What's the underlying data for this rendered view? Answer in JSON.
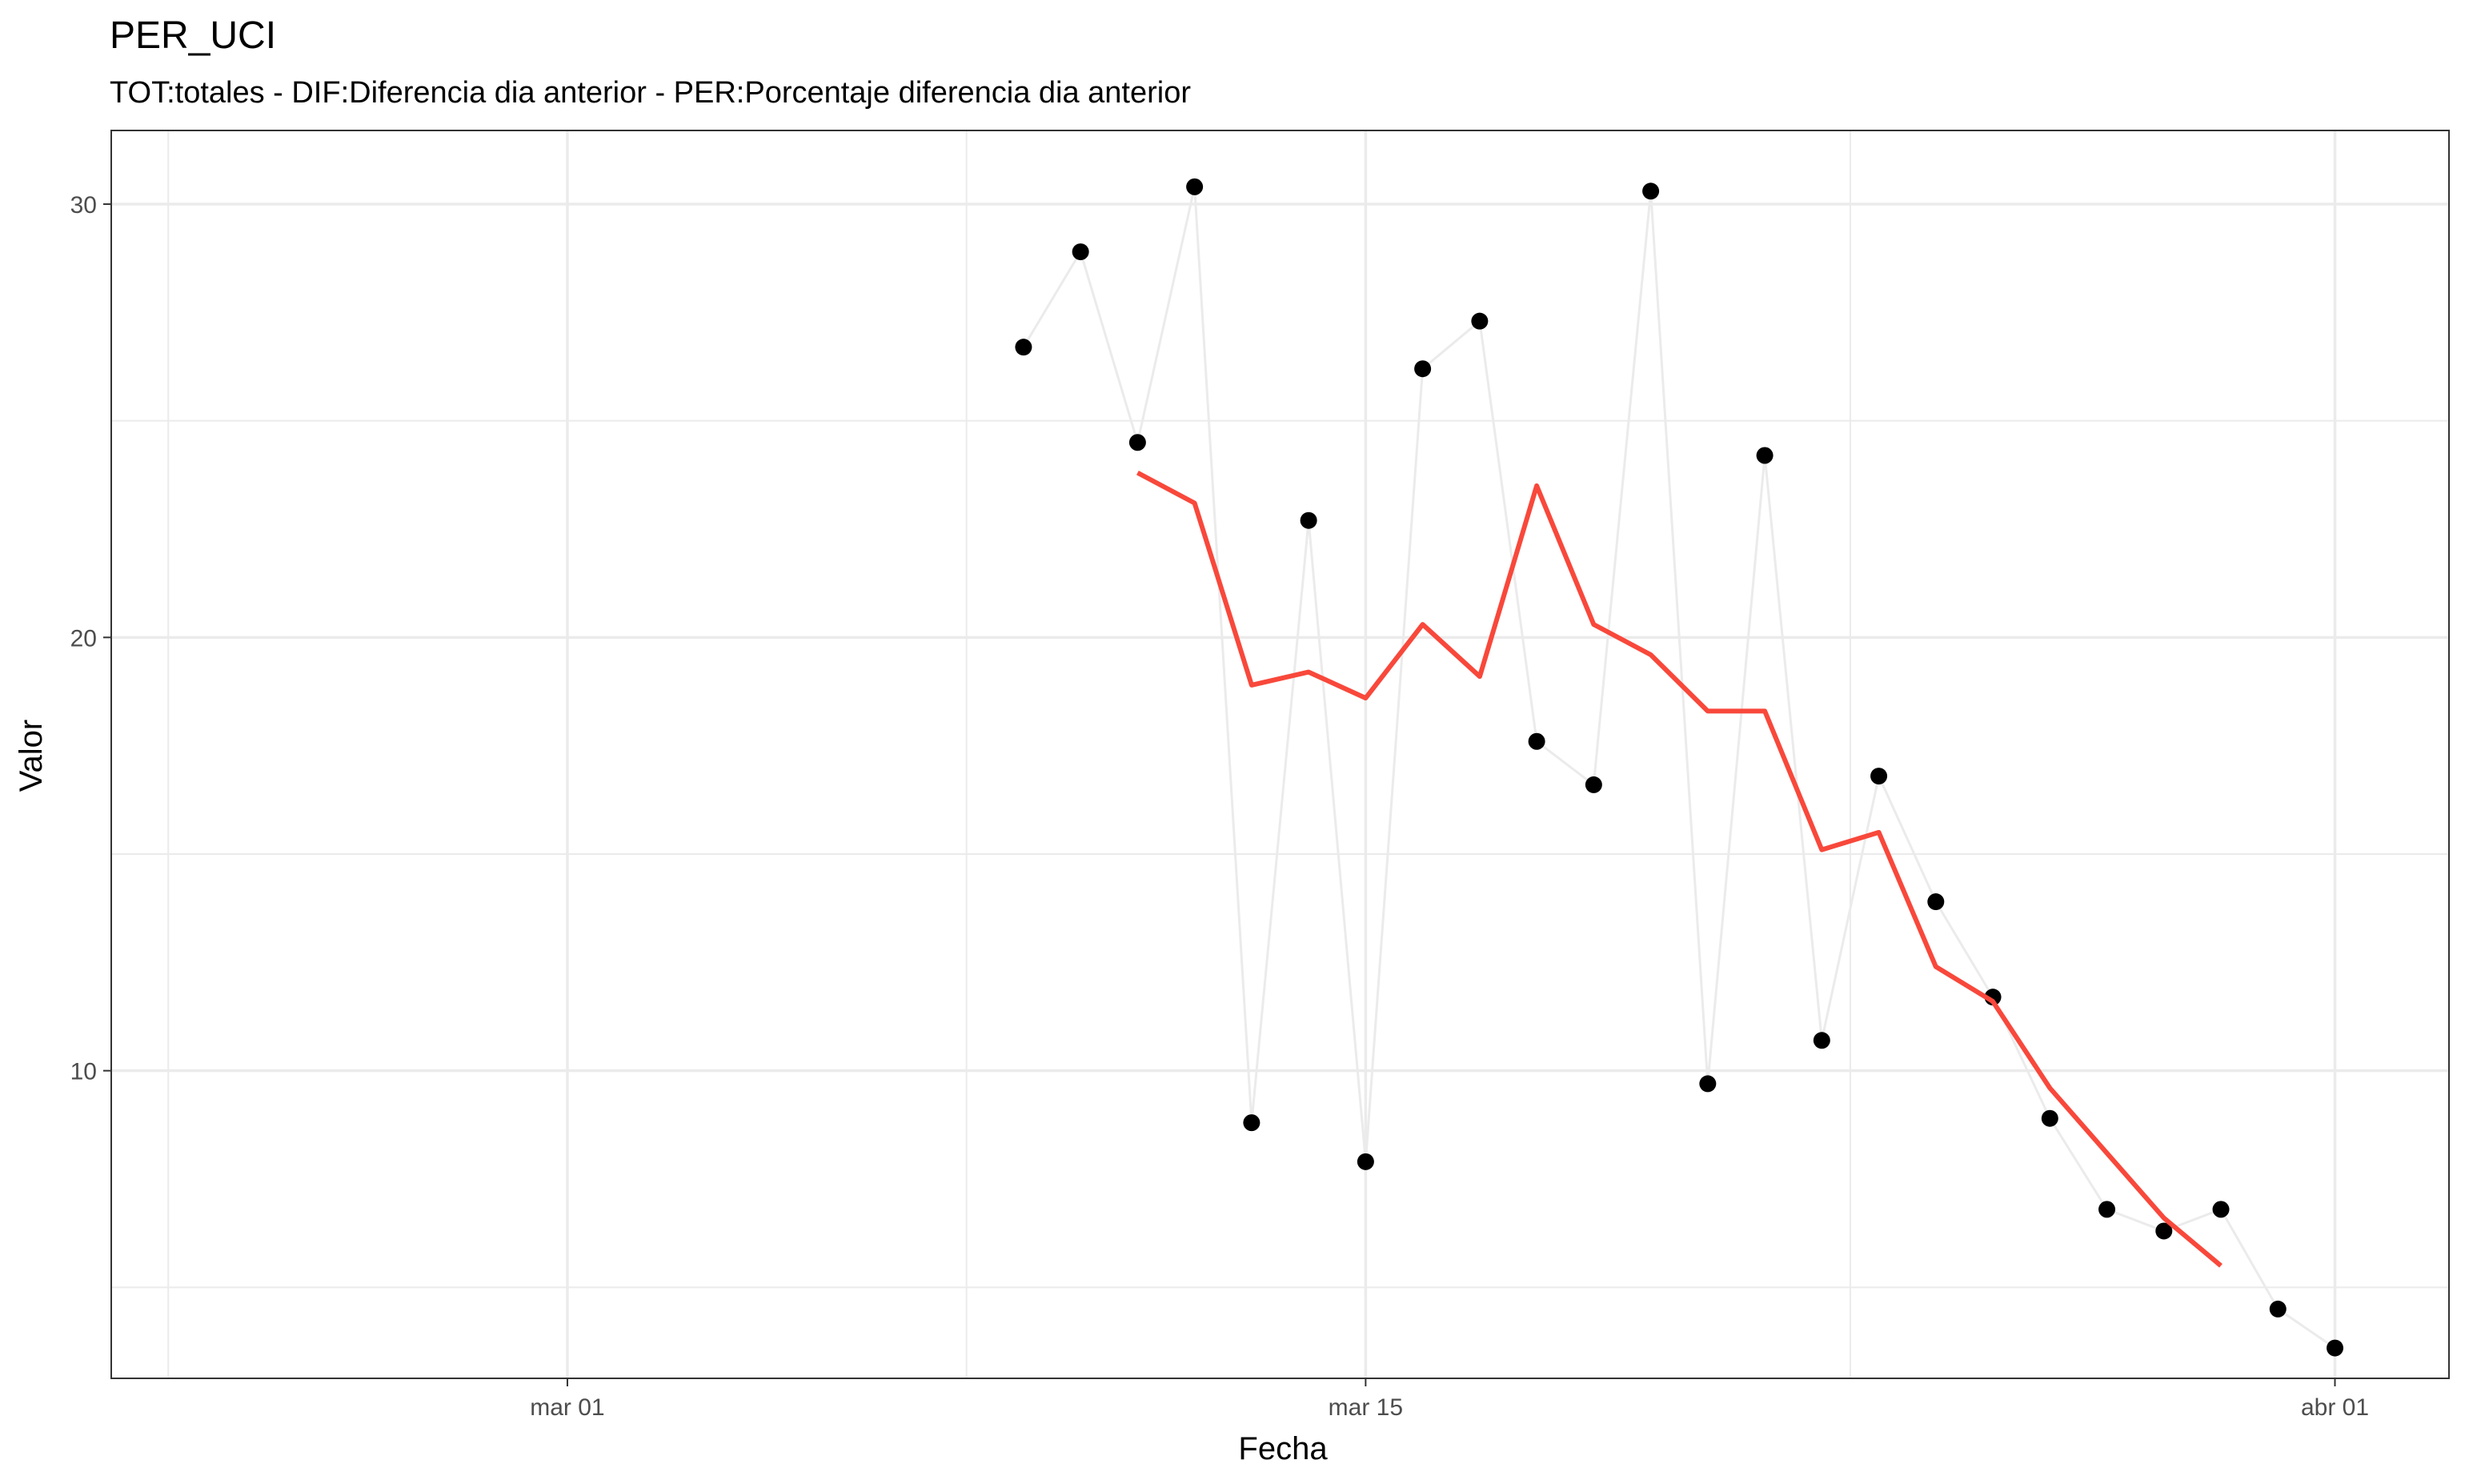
{
  "chart_data": {
    "type": "line",
    "title": "PER_UCI",
    "subtitle": "TOT:totales - DIF:Diferencia dia anterior - PER:Porcentaje diferencia dia anterior",
    "xlabel": "Fecha",
    "ylabel": "Valor",
    "x_ticks": [
      {
        "date": "2020-03-01",
        "label": "mar 01"
      },
      {
        "date": "2020-03-15",
        "label": "mar 15"
      },
      {
        "date": "2020-04-01",
        "label": "abr 01"
      }
    ],
    "y_ticks": [
      10,
      20,
      30
    ],
    "xlim": [
      "2020-02-22",
      "2020-04-03"
    ],
    "ylim": [
      2.9,
      31.7
    ],
    "grid": true,
    "series": [
      {
        "style": "points-with-line",
        "color": "#000000",
        "line_color": "#ebebeb",
        "x": [
          "2020-03-09",
          "2020-03-10",
          "2020-03-11",
          "2020-03-12",
          "2020-03-13",
          "2020-03-14",
          "2020-03-15",
          "2020-03-16",
          "2020-03-17",
          "2020-03-18",
          "2020-03-19",
          "2020-03-20",
          "2020-03-21",
          "2020-03-22",
          "2020-03-23",
          "2020-03-24",
          "2020-03-25",
          "2020-03-26",
          "2020-03-27",
          "2020-03-28",
          "2020-03-29",
          "2020-03-30",
          "2020-03-31",
          "2020-04-01"
        ],
        "values": [
          26.7,
          28.9,
          24.5,
          30.4,
          8.8,
          22.7,
          7.9,
          26.2,
          27.3,
          17.6,
          16.6,
          30.3,
          9.7,
          24.2,
          10.7,
          16.8,
          13.9,
          11.7,
          8.9,
          6.8,
          6.3,
          6.8,
          4.5,
          3.6
        ]
      },
      {
        "style": "line",
        "color": "#f8483b",
        "x": [
          "2020-03-11",
          "2020-03-12",
          "2020-03-13",
          "2020-03-14",
          "2020-03-15",
          "2020-03-16",
          "2020-03-17",
          "2020-03-18",
          "2020-03-19",
          "2020-03-20",
          "2020-03-21",
          "2020-03-22",
          "2020-03-23",
          "2020-03-24",
          "2020-03-25",
          "2020-03-26",
          "2020-03-27",
          "2020-03-28",
          "2020-03-29",
          "2020-03-30"
        ],
        "values": [
          23.8,
          23.1,
          18.9,
          19.2,
          18.6,
          20.3,
          19.1,
          23.5,
          20.3,
          19.6,
          18.3,
          18.3,
          15.1,
          15.5,
          12.4,
          11.6,
          9.6,
          8.1,
          6.6,
          5.5
        ]
      }
    ]
  }
}
